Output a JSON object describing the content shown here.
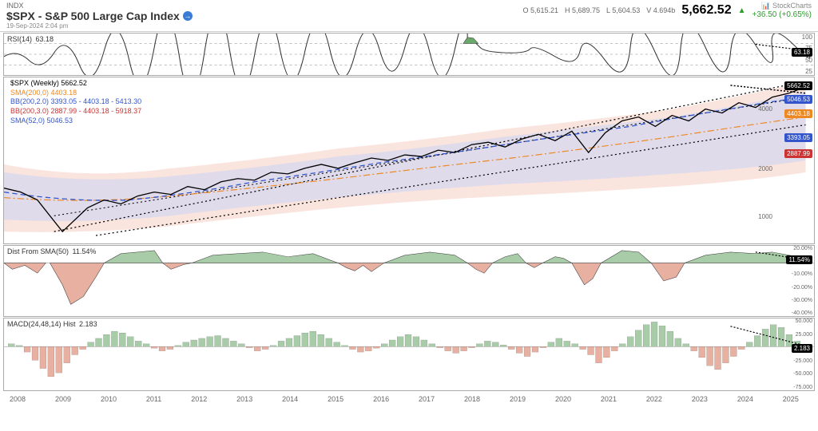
{
  "header": {
    "indx_label": "INDX",
    "title": "$SPX - S&P 500 Large Cap Index",
    "timestamp": "19-Sep-2024 2:04 pm",
    "open": "5,615.21",
    "high": "5,689.75",
    "low": "5,604.53",
    "volume": "4.694b",
    "price": "5,662.52",
    "change": "+36.50 (+0.65%)",
    "brand": "StockCharts"
  },
  "rsi": {
    "label": "RSI(14)",
    "value": "63.18",
    "levels": [
      25,
      50,
      75,
      100
    ],
    "series_color": "#333333",
    "midline_color": "#888888",
    "overbought_fill": "#6ba86b",
    "badge_value": "63.18"
  },
  "price": {
    "legend_main": {
      "label": "$SPX (Weekly)",
      "value": "5662.52",
      "color": "#000000"
    },
    "legend_sma200": {
      "label": "SMA(200,0)",
      "value": "4403.18",
      "color": "#ee8822"
    },
    "legend_bb1": {
      "label": "BB(200,2.0)",
      "value": "3393.05 - 4403.18 - 5413.30",
      "color": "#3355cc"
    },
    "legend_bb2": {
      "label": "BB(200,3.0)",
      "value": "2887.99 - 4403.18 - 5918.37",
      "color": "#cc3333"
    },
    "legend_sma52": {
      "label": "SMA(52,0)",
      "value": "5046.53",
      "color": "#3355cc"
    },
    "y_ticks": [
      "2000",
      "4000",
      "1000"
    ],
    "badges": {
      "price": "5662.52",
      "sma52": "5046.53",
      "sma200": "4403.18",
      "bb_upper": "3393.05",
      "bb_lower": "2887.99"
    },
    "bb_outer_fill": "#f8d8d0",
    "bb_inner_fill": "#d8d8ee",
    "price_color": "#000000",
    "sma200_color": "#ee8822",
    "sma52_dash": "6,4",
    "trend_dash": "2,3"
  },
  "dist": {
    "label": "Dist From SMA(50)",
    "value": "11.54%",
    "y_ticks": [
      "20.00%",
      "0.00%",
      "-10.00%",
      "-20.00%",
      "-30.00%",
      "-40.00%"
    ],
    "pos_fill": "#a8cca8",
    "neg_fill": "#e8b0a0",
    "stroke": "#333333",
    "badge_value": "11.54%"
  },
  "macd": {
    "label": "MACD(24,48,14) Hist",
    "value": "2.183",
    "y_ticks": [
      "50.000",
      "25.000",
      "0.000",
      "-25.000",
      "-50.000",
      "-75.000"
    ],
    "pos_fill": "#a8cca8",
    "neg_fill": "#e8b0a0",
    "badge_value": "2.183"
  },
  "x_axis": [
    "2008",
    "2009",
    "2010",
    "2011",
    "2012",
    "2013",
    "2014",
    "2015",
    "2016",
    "2017",
    "2018",
    "2019",
    "2020",
    "2021",
    "2022",
    "2023",
    "2024",
    "2025"
  ],
  "colors": {
    "grid": "#dddddd",
    "bg": "#ffffff"
  }
}
